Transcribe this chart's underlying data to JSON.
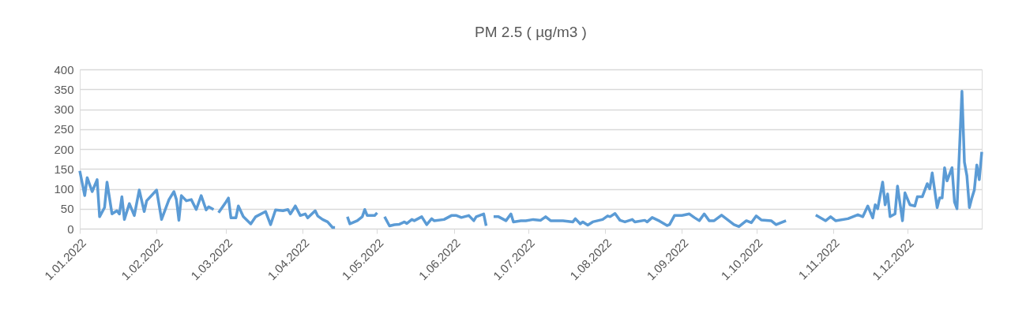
{
  "chart_data": {
    "type": "line",
    "title": "PM 2.5 ( µg/m3 )",
    "x": [
      "2022-01-01",
      "2022-01-03",
      "2022-01-04",
      "2022-01-06",
      "2022-01-08",
      "2022-01-09",
      "2022-01-11",
      "2022-01-12",
      "2022-01-14",
      "2022-01-16",
      "2022-01-17",
      "2022-01-18",
      "2022-01-19",
      "2022-01-21",
      "2022-01-23",
      "2022-01-25",
      "2022-01-27",
      "2022-01-28",
      "2022-02-01",
      "2022-02-03",
      "2022-02-06",
      "2022-02-08",
      "2022-02-09",
      "2022-02-10",
      "2022-02-11",
      "2022-02-13",
      "2022-02-15",
      "2022-02-17",
      "2022-02-19",
      "2022-02-21",
      "2022-02-22",
      "2022-02-24",
      "2022-02-25",
      "2022-02-26",
      "2022-03-01",
      "2022-03-02",
      "2022-03-03",
      "2022-03-05",
      "2022-03-06",
      "2022-03-08",
      "2022-03-11",
      "2022-03-13",
      "2022-03-17",
      "2022-03-19",
      "2022-03-21",
      "2022-03-24",
      "2022-03-26",
      "2022-03-27",
      "2022-03-29",
      "2022-03-31",
      "2022-04-02",
      "2022-04-03",
      "2022-04-06",
      "2022-04-07",
      "2022-04-09",
      "2022-04-11",
      "2022-04-13",
      "2022-04-14",
      "2022-04-16",
      "2022-04-19",
      "2022-04-20",
      "2022-04-23",
      "2022-04-25",
      "2022-04-26",
      "2022-04-27",
      "2022-04-30",
      "2022-05-01",
      "2022-05-02",
      "2022-05-04",
      "2022-05-06",
      "2022-05-08",
      "2022-05-10",
      "2022-05-12",
      "2022-05-13",
      "2022-05-15",
      "2022-05-16",
      "2022-05-19",
      "2022-05-21",
      "2022-05-23",
      "2022-05-24",
      "2022-05-28",
      "2022-05-31",
      "2022-06-02",
      "2022-06-04",
      "2022-06-07",
      "2022-06-09",
      "2022-06-10",
      "2022-06-13",
      "2022-06-14",
      "2022-06-15",
      "2022-06-17",
      "2022-06-19",
      "2022-06-22",
      "2022-06-24",
      "2022-06-25",
      "2022-06-28",
      "2022-06-30",
      "2022-07-03",
      "2022-07-06",
      "2022-07-08",
      "2022-07-10",
      "2022-07-15",
      "2022-07-19",
      "2022-07-20",
      "2022-07-22",
      "2022-07-23",
      "2022-07-25",
      "2022-07-27",
      "2022-07-31",
      "2022-08-02",
      "2022-08-03",
      "2022-08-05",
      "2022-08-07",
      "2022-08-09",
      "2022-08-12",
      "2022-08-13",
      "2022-08-17",
      "2022-08-18",
      "2022-08-20",
      "2022-08-23",
      "2022-08-26",
      "2022-08-27",
      "2022-08-29",
      "2022-09-01",
      "2022-09-04",
      "2022-09-06",
      "2022-09-08",
      "2022-09-10",
      "2022-09-12",
      "2022-09-14",
      "2022-09-17",
      "2022-09-22",
      "2022-09-24",
      "2022-09-27",
      "2022-09-29",
      "2022-10-01",
      "2022-10-03",
      "2022-10-07",
      "2022-10-09",
      "2022-10-13",
      "2022-10-20",
      "2022-10-25",
      "2022-10-29",
      "2022-10-31",
      "2022-11-02",
      "2022-11-07",
      "2022-11-09",
      "2022-11-11",
      "2022-11-13",
      "2022-11-15",
      "2022-11-17",
      "2022-11-18",
      "2022-11-19",
      "2022-11-21",
      "2022-11-22",
      "2022-11-23",
      "2022-11-24",
      "2022-11-26",
      "2022-11-27",
      "2022-11-29",
      "2022-11-30",
      "2022-12-02",
      "2022-12-04",
      "2022-12-05",
      "2022-12-07",
      "2022-12-09",
      "2022-12-10",
      "2022-12-11",
      "2022-12-13",
      "2022-12-14",
      "2022-12-15",
      "2022-12-16",
      "2022-12-17",
      "2022-12-19",
      "2022-12-20",
      "2022-12-21",
      "2022-12-23",
      "2022-12-24",
      "2022-12-25",
      "2022-12-26",
      "2022-12-27",
      "2022-12-28",
      "2022-12-29",
      "2022-12-30",
      "2022-12-31"
    ],
    "series": [
      {
        "color": "#5b9bd5",
        "values": [
          145,
          83,
          128,
          93,
          123,
          30,
          53,
          117,
          37,
          45,
          37,
          80,
          23,
          63,
          33,
          97,
          43,
          70,
          97,
          23,
          73,
          93,
          73,
          21,
          83,
          70,
          73,
          48,
          83,
          47,
          55,
          48,
          null,
          40,
          67,
          77,
          27,
          27,
          57,
          30,
          12,
          30,
          43,
          10,
          47,
          45,
          48,
          37,
          57,
          33,
          37,
          27,
          45,
          32,
          23,
          17,
          3,
          3,
          null,
          30,
          12,
          20,
          30,
          48,
          33,
          33,
          40,
          null,
          30,
          7,
          10,
          11,
          17,
          13,
          23,
          20,
          30,
          10,
          25,
          20,
          23,
          33,
          33,
          28,
          33,
          20,
          30,
          37,
          7,
          null,
          30,
          30,
          20,
          37,
          17,
          20,
          20,
          23,
          21,
          30,
          20,
          20,
          17,
          25,
          12,
          17,
          9,
          17,
          23,
          32,
          30,
          38,
          21,
          17,
          23,
          17,
          21,
          17,
          28,
          19,
          8,
          10,
          33,
          33,
          37,
          28,
          20,
          37,
          20,
          20,
          34,
          10,
          5,
          20,
          15,
          32,
          22,
          20,
          10,
          20,
          null,
          34,
          20,
          30,
          20,
          25,
          30,
          35,
          30,
          57,
          27,
          60,
          50,
          117,
          60,
          87,
          30,
          37,
          107,
          20,
          90,
          60,
          57,
          80,
          80,
          113,
          100,
          140,
          53,
          77,
          77,
          153,
          120,
          153,
          67,
          50,
          345,
          167,
          133,
          53,
          77,
          97,
          160,
          123,
          193
        ]
      }
    ],
    "xlim": [
      "2022-01-01",
      "2022-12-31"
    ],
    "xticks": [
      {
        "value": "2022-01-01",
        "label": "1.01.2022"
      },
      {
        "value": "2022-02-01",
        "label": "1.02.2022"
      },
      {
        "value": "2022-03-01",
        "label": "1.03.2022"
      },
      {
        "value": "2022-04-01",
        "label": "1.04.2022"
      },
      {
        "value": "2022-05-01",
        "label": "1.05.2022"
      },
      {
        "value": "2022-06-01",
        "label": "1.06.2022"
      },
      {
        "value": "2022-07-01",
        "label": "1.07.2022"
      },
      {
        "value": "2022-08-01",
        "label": "1.08.2022"
      },
      {
        "value": "2022-09-01",
        "label": "1.09.2022"
      },
      {
        "value": "2022-10-01",
        "label": "1.10.2022"
      },
      {
        "value": "2022-11-01",
        "label": "1.11.2022"
      },
      {
        "value": "2022-12-01",
        "label": "1.12.2022"
      }
    ],
    "ylim": [
      0,
      400
    ],
    "yticks": [
      0,
      50,
      100,
      150,
      200,
      250,
      300,
      350,
      400
    ],
    "grid": "y",
    "marker": "none",
    "line_style": "solid"
  }
}
